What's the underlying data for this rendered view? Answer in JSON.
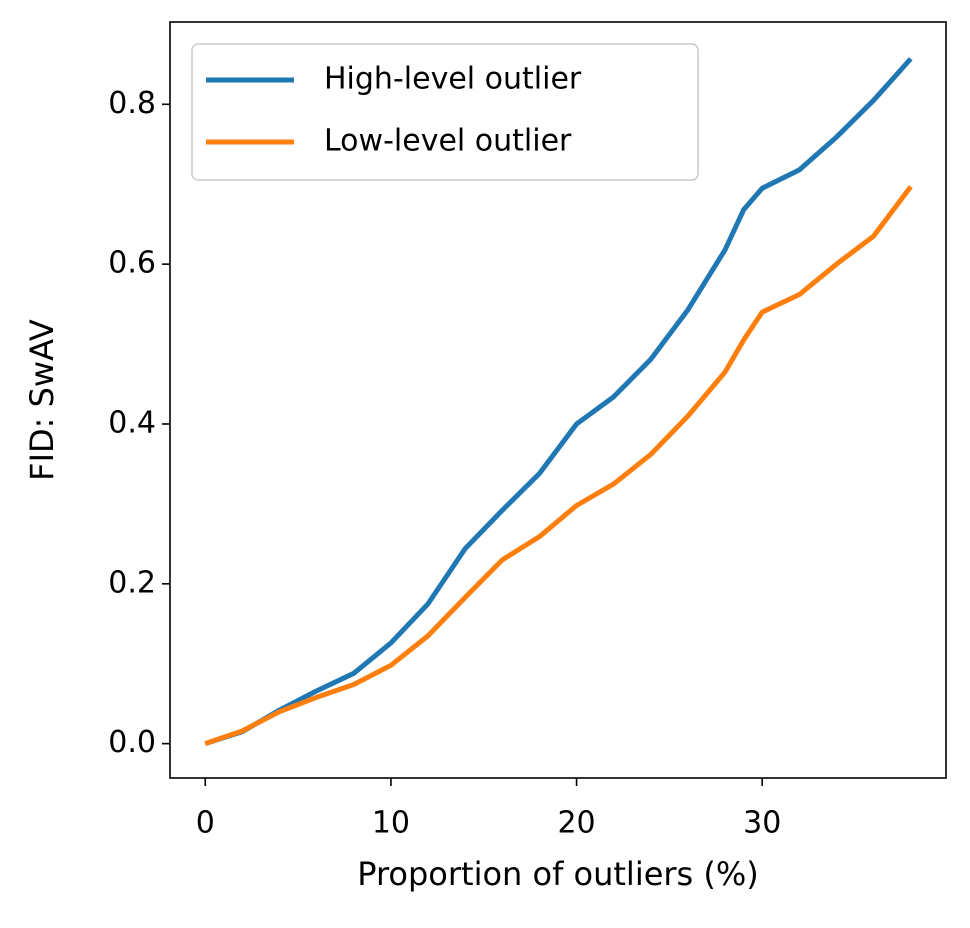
{
  "chart_data": {
    "type": "line",
    "x_label": "Proportion of outliers (%)",
    "y_label": "FID: SwAV",
    "x": [
      0,
      2,
      4,
      6,
      8,
      10,
      12,
      14,
      16,
      18,
      20,
      22,
      24,
      26,
      28,
      29,
      30,
      32,
      34,
      36,
      38
    ],
    "series": [
      {
        "name": "High-level outlier",
        "color": "#1f77b4",
        "values": [
          0,
          0.015,
          0.042,
          0.066,
          0.088,
          0.126,
          0.175,
          0.244,
          0.292,
          0.338,
          0.4,
          0.434,
          0.481,
          0.543,
          0.618,
          0.668,
          0.695,
          0.718,
          0.759,
          0.805,
          0.857
        ]
      },
      {
        "name": "Low-level outlier",
        "color": "#ff7f0e",
        "values": [
          0,
          0.016,
          0.04,
          0.058,
          0.074,
          0.098,
          0.135,
          0.183,
          0.23,
          0.259,
          0.298,
          0.325,
          0.362,
          0.41,
          0.465,
          0.505,
          0.54,
          0.562,
          0.6,
          0.635,
          0.697
        ]
      }
    ],
    "xlim": [
      -1.9,
      39.9
    ],
    "ylim": [
      -0.043,
      0.903
    ],
    "xticks": [
      0,
      10,
      20,
      30
    ],
    "yticks": [
      {
        "value": 0,
        "label": "0.0"
      },
      0.2,
      0.4,
      0.6,
      0.8
    ],
    "legend": "upper left",
    "grid": false
  }
}
